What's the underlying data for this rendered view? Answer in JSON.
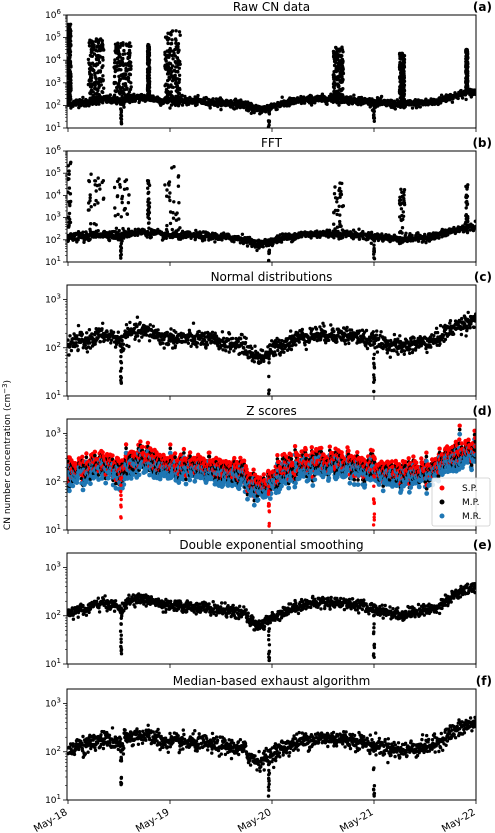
{
  "ylabel_main": "CN number concentration (cm",
  "ylabel_sup": "−3",
  "ylabel_close": ")",
  "x_ticks": [
    "May-18",
    "May-19",
    "May-20",
    "May-21",
    "May-22"
  ],
  "colors": {
    "points": "#000000",
    "sp": "#ff0000",
    "mr": "#1f77b4"
  },
  "chart_data": [
    {
      "type": "scatter",
      "title": "Raw CN data",
      "panel_label": "(a)",
      "yscale": "log",
      "ylim": [
        10,
        1000000
      ],
      "yticks": [
        {
          "v": 10,
          "e": "1"
        },
        {
          "v": 100,
          "e": "2"
        },
        {
          "v": 1000,
          "e": "3"
        },
        {
          "v": 10000,
          "e": "4"
        },
        {
          "v": 100000,
          "e": "5"
        },
        {
          "v": 1000000,
          "e": "6"
        }
      ]
    },
    {
      "type": "scatter",
      "title": "FFT",
      "panel_label": "(b)",
      "yscale": "log",
      "ylim": [
        10,
        1000000
      ],
      "yticks": [
        {
          "v": 10,
          "e": "1"
        },
        {
          "v": 100,
          "e": "2"
        },
        {
          "v": 1000,
          "e": "3"
        },
        {
          "v": 10000,
          "e": "4"
        },
        {
          "v": 100000,
          "e": "5"
        },
        {
          "v": 1000000,
          "e": "6"
        }
      ]
    },
    {
      "type": "scatter",
      "title": "Normal distributions",
      "panel_label": "(c)",
      "yscale": "log",
      "ylim": [
        10,
        2000
      ],
      "yticks": [
        {
          "v": 10,
          "e": "1"
        },
        {
          "v": 100,
          "e": "2"
        },
        {
          "v": 1000,
          "e": "3"
        }
      ]
    },
    {
      "type": "scatter",
      "title": "Z scores",
      "panel_label": "(d)",
      "yscale": "log",
      "ylim": [
        10,
        2000
      ],
      "yticks": [
        {
          "v": 10,
          "e": "1"
        },
        {
          "v": 100,
          "e": "2"
        },
        {
          "v": 1000,
          "e": "3"
        }
      ],
      "legend": [
        {
          "label": "S.P.",
          "color": "#ff0000"
        },
        {
          "label": "M.P.",
          "color": "#000000"
        },
        {
          "label": "M.R.",
          "color": "#1f77b4"
        }
      ],
      "legend_position": "center-right"
    },
    {
      "type": "scatter",
      "title": "Double exponential smoothing",
      "panel_label": "(e)",
      "yscale": "log",
      "ylim": [
        10,
        2000
      ],
      "yticks": [
        {
          "v": 10,
          "e": "1"
        },
        {
          "v": 100,
          "e": "2"
        },
        {
          "v": 1000,
          "e": "3"
        }
      ]
    },
    {
      "type": "scatter",
      "title": "Median-based exhaust algorithm",
      "panel_label": "(f)",
      "yscale": "log",
      "ylim": [
        10,
        2000
      ],
      "yticks": [
        {
          "v": 10,
          "e": "1"
        },
        {
          "v": 100,
          "e": "2"
        },
        {
          "v": 1000,
          "e": "3"
        }
      ]
    }
  ]
}
